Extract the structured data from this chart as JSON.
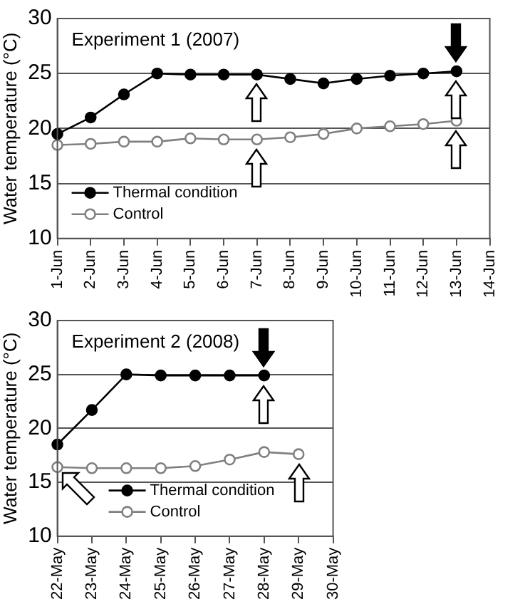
{
  "chart_data": [
    {
      "type": "line",
      "title": "Experiment 1 (2007)",
      "ylabel": "Water temperature (°C)",
      "categories": [
        "1-Jun",
        "2-Jun",
        "3-Jun",
        "4-Jun",
        "5-Jun",
        "6-Jun",
        "7-Jun",
        "8-Jun",
        "9-Jun",
        "10-Jun",
        "11-Jun",
        "12-Jun",
        "13-Jun",
        "14-Jun"
      ],
      "series": [
        {
          "name": "Thermal condition",
          "color": "#000000",
          "marker": "circle",
          "values": [
            19.5,
            21,
            23.1,
            25,
            24.9,
            24.9,
            24.9,
            24.5,
            24.1,
            24.5,
            24.8,
            25,
            25.2,
            null
          ]
        },
        {
          "name": "Control",
          "color": "#808080",
          "marker": "circle",
          "values": [
            18.5,
            18.6,
            18.8,
            18.8,
            19.1,
            19,
            19,
            19.2,
            19.5,
            20,
            20.2,
            20.4,
            20.7,
            null
          ]
        }
      ],
      "ylim": [
        10,
        30
      ],
      "yticks": [
        10,
        15,
        20,
        25,
        30
      ],
      "grid": "y",
      "legend": "bottom left"
    },
    {
      "type": "line",
      "title": "Experiment 2 (2008)",
      "ylabel": "Water temperature (°C)",
      "categories": [
        "22-May",
        "23-May",
        "24-May",
        "25-May",
        "26-May",
        "27-May",
        "28-May",
        "29-May",
        "30-May"
      ],
      "series": [
        {
          "name": "Thermal condition",
          "color": "#000000",
          "marker": "circle",
          "values": [
            18.5,
            21.7,
            25,
            24.9,
            24.9,
            24.9,
            24.9,
            null,
            null
          ]
        },
        {
          "name": "Control",
          "color": "#808080",
          "marker": "circle",
          "values": [
            16.4,
            16.3,
            16.3,
            16.3,
            16.5,
            17.1,
            17.8,
            17.6,
            null
          ]
        }
      ],
      "ylim": [
        10,
        30
      ],
      "yticks": [
        10,
        15,
        20,
        25,
        30
      ],
      "grid": "y",
      "legend": "bottom left"
    }
  ]
}
